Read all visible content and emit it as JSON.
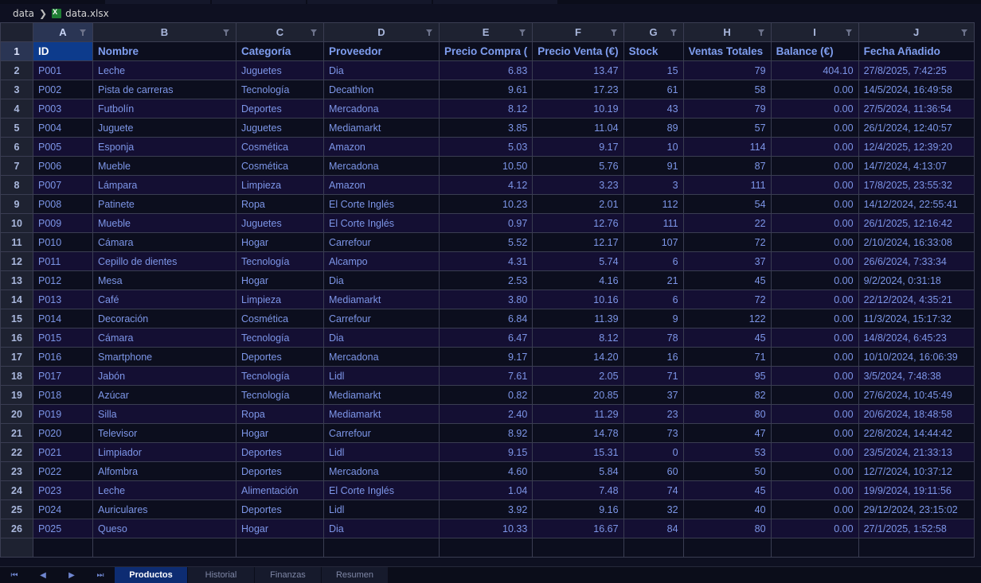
{
  "breadcrumb": {
    "folder": "data",
    "file": "data.xlsx"
  },
  "columns": [
    "A",
    "B",
    "C",
    "D",
    "E",
    "F",
    "G",
    "H",
    "I",
    "J"
  ],
  "header_row": [
    "ID",
    "Nombre",
    "Categoría",
    "Proveedor",
    "Precio Compra (",
    "Precio Venta (€)",
    "Stock",
    "Ventas Totales",
    "Balance (€)",
    "Fecha Añadido"
  ],
  "rows": [
    [
      "P001",
      "Leche",
      "Juguetes",
      "Dia",
      "6.83",
      "13.47",
      "15",
      "79",
      "404.10",
      "27/8/2025, 7:42:25"
    ],
    [
      "P002",
      "Pista de carreras",
      "Tecnología",
      "Decathlon",
      "9.61",
      "17.23",
      "61",
      "58",
      "0.00",
      "14/5/2024, 16:49:58"
    ],
    [
      "P003",
      "Futbolín",
      "Deportes",
      "Mercadona",
      "8.12",
      "10.19",
      "43",
      "79",
      "0.00",
      "27/5/2024, 11:36:54"
    ],
    [
      "P004",
      "Juguete",
      "Juguetes",
      "Mediamarkt",
      "3.85",
      "11.04",
      "89",
      "57",
      "0.00",
      "26/1/2024, 12:40:57"
    ],
    [
      "P005",
      "Esponja",
      "Cosmética",
      "Amazon",
      "5.03",
      "9.17",
      "10",
      "114",
      "0.00",
      "12/4/2025, 12:39:20"
    ],
    [
      "P006",
      "Mueble",
      "Cosmética",
      "Mercadona",
      "10.50",
      "5.76",
      "91",
      "87",
      "0.00",
      "14/7/2024, 4:13:07"
    ],
    [
      "P007",
      "Lámpara",
      "Limpieza",
      "Amazon",
      "4.12",
      "3.23",
      "3",
      "111",
      "0.00",
      "17/8/2025, 23:55:32"
    ],
    [
      "P008",
      "Patinete",
      "Ropa",
      "El Corte Inglés",
      "10.23",
      "2.01",
      "112",
      "54",
      "0.00",
      "14/12/2024, 22:55:41"
    ],
    [
      "P009",
      "Mueble",
      "Juguetes",
      "El Corte Inglés",
      "0.97",
      "12.76",
      "111",
      "22",
      "0.00",
      "26/1/2025, 12:16:42"
    ],
    [
      "P010",
      "Cámara",
      "Hogar",
      "Carrefour",
      "5.52",
      "12.17",
      "107",
      "72",
      "0.00",
      "2/10/2024, 16:33:08"
    ],
    [
      "P011",
      "Cepillo de dientes",
      "Tecnología",
      "Alcampo",
      "4.31",
      "5.74",
      "6",
      "37",
      "0.00",
      "26/6/2024, 7:33:34"
    ],
    [
      "P012",
      "Mesa",
      "Hogar",
      "Dia",
      "2.53",
      "4.16",
      "21",
      "45",
      "0.00",
      "9/2/2024, 0:31:18"
    ],
    [
      "P013",
      "Café",
      "Limpieza",
      "Mediamarkt",
      "3.80",
      "10.16",
      "6",
      "72",
      "0.00",
      "22/12/2024, 4:35:21"
    ],
    [
      "P014",
      "Decoración",
      "Cosmética",
      "Carrefour",
      "6.84",
      "11.39",
      "9",
      "122",
      "0.00",
      "11/3/2024, 15:17:32"
    ],
    [
      "P015",
      "Cámara",
      "Tecnología",
      "Dia",
      "6.47",
      "8.12",
      "78",
      "45",
      "0.00",
      "14/8/2024, 6:45:23"
    ],
    [
      "P016",
      "Smartphone",
      "Deportes",
      "Mercadona",
      "9.17",
      "14.20",
      "16",
      "71",
      "0.00",
      "10/10/2024, 16:06:39"
    ],
    [
      "P017",
      "Jabón",
      "Tecnología",
      "Lidl",
      "7.61",
      "2.05",
      "71",
      "95",
      "0.00",
      "3/5/2024, 7:48:38"
    ],
    [
      "P018",
      "Azúcar",
      "Tecnología",
      "Mediamarkt",
      "0.82",
      "20.85",
      "37",
      "82",
      "0.00",
      "27/6/2024, 10:45:49"
    ],
    [
      "P019",
      "Silla",
      "Ropa",
      "Mediamarkt",
      "2.40",
      "11.29",
      "23",
      "80",
      "0.00",
      "20/6/2024, 18:48:58"
    ],
    [
      "P020",
      "Televisor",
      "Hogar",
      "Carrefour",
      "8.92",
      "14.78",
      "73",
      "47",
      "0.00",
      "22/8/2024, 14:44:42"
    ],
    [
      "P021",
      "Limpiador",
      "Deportes",
      "Lidl",
      "9.15",
      "15.31",
      "0",
      "53",
      "0.00",
      "23/5/2024, 21:33:13"
    ],
    [
      "P022",
      "Alfombra",
      "Deportes",
      "Mercadona",
      "4.60",
      "5.84",
      "60",
      "50",
      "0.00",
      "12/7/2024, 10:37:12"
    ],
    [
      "P023",
      "Leche",
      "Alimentación",
      "El Corte Inglés",
      "1.04",
      "7.48",
      "74",
      "45",
      "0.00",
      "19/9/2024, 19:11:56"
    ],
    [
      "P024",
      "Auriculares",
      "Deportes",
      "Lidl",
      "3.92",
      "9.16",
      "32",
      "40",
      "0.00",
      "29/12/2024, 23:15:02"
    ],
    [
      "P025",
      "Queso",
      "Hogar",
      "Dia",
      "10.33",
      "16.67",
      "84",
      "80",
      "0.00",
      "27/1/2025, 1:52:58"
    ]
  ],
  "sheets": [
    "Productos",
    "Historial",
    "Finanzas",
    "Resumen"
  ],
  "active_sheet": "Productos",
  "colors": {
    "accent": "#0d3b8c",
    "cell_text": "#7d96e8",
    "header_text": "#7f9ef0"
  }
}
